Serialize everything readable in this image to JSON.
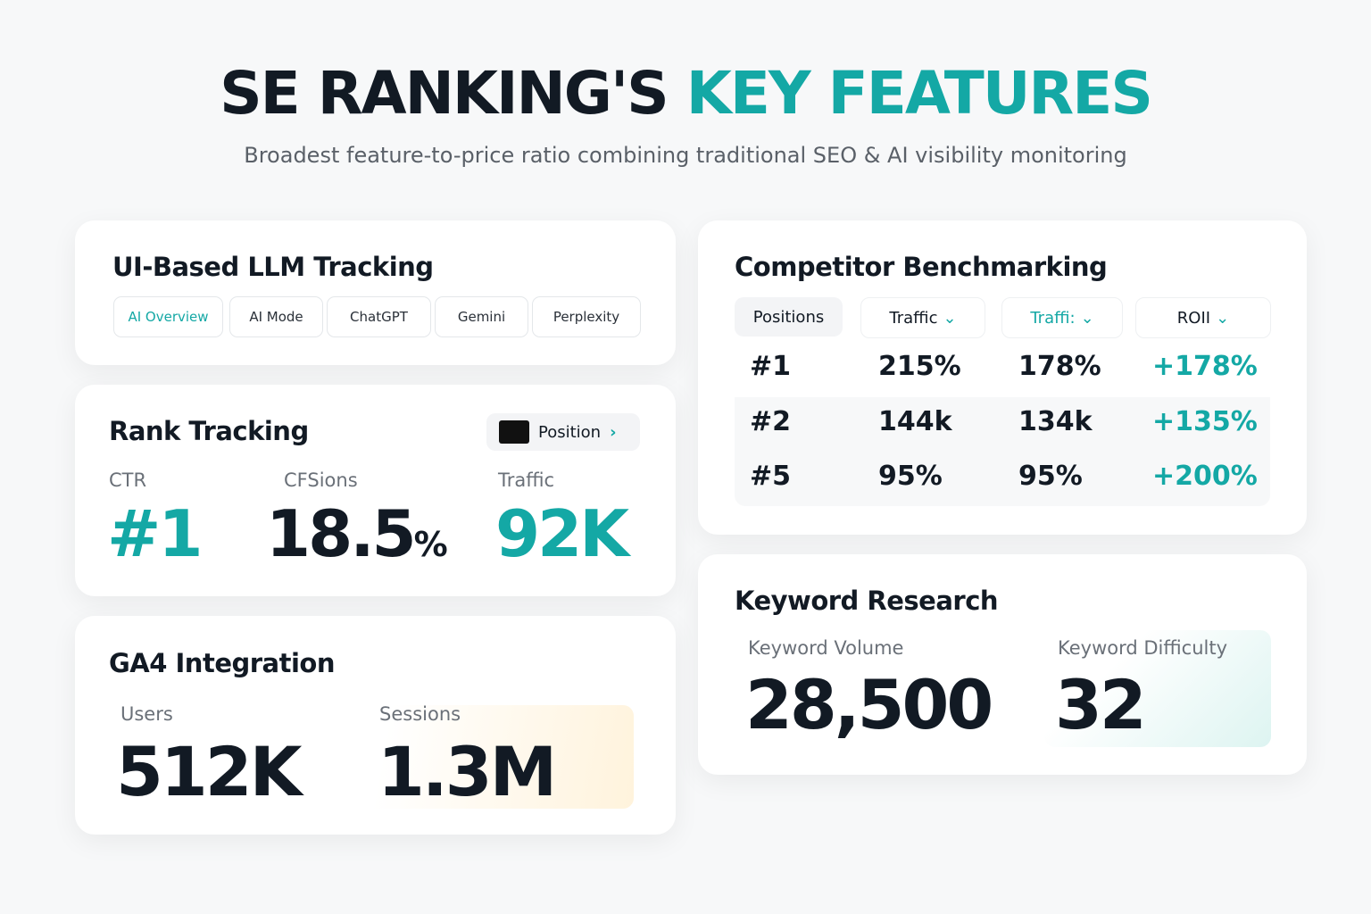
{
  "header": {
    "title_dark": "SE RANKING'S",
    "title_accent": "KEY FEATURES",
    "subtitle": "Broadest feature-to-price ratio combining traditional SEO & AI visibility monitoring"
  },
  "llm_tracking": {
    "title": "UI-Based LLM Tracking",
    "tabs": [
      "AI Overview",
      "AI Mode",
      "ChatGPT",
      "Gemini",
      "Perplexity"
    ]
  },
  "rank_tracking": {
    "title": "Rank Tracking",
    "button": "Position",
    "metrics": [
      {
        "label": "CTR",
        "value": "#1"
      },
      {
        "label": "CFSions",
        "value": "18.5",
        "unit": "%"
      },
      {
        "label": "Traffic",
        "value": "92K"
      }
    ]
  },
  "ga4": {
    "title": "GA4 Integration",
    "metrics": [
      {
        "label": "Users",
        "value": "512K"
      },
      {
        "label": "Sessions",
        "value": "1.3M"
      }
    ]
  },
  "competitor": {
    "title": "Competitor Benchmarking",
    "headers": [
      "Positions",
      "Traffic",
      "Traffi:",
      "ROII"
    ],
    "rows": [
      [
        "#1",
        "215%",
        "178%",
        "+178%"
      ],
      [
        "#2",
        "144k",
        "134k",
        "+135%"
      ],
      [
        "#5",
        "95%",
        "95%",
        "+200%"
      ]
    ]
  },
  "keyword": {
    "title": "Keyword Research",
    "metrics": [
      {
        "label": "Keyword Volume",
        "value": "28,500"
      },
      {
        "label": "Keyword Difficulty",
        "value": "32"
      }
    ]
  }
}
